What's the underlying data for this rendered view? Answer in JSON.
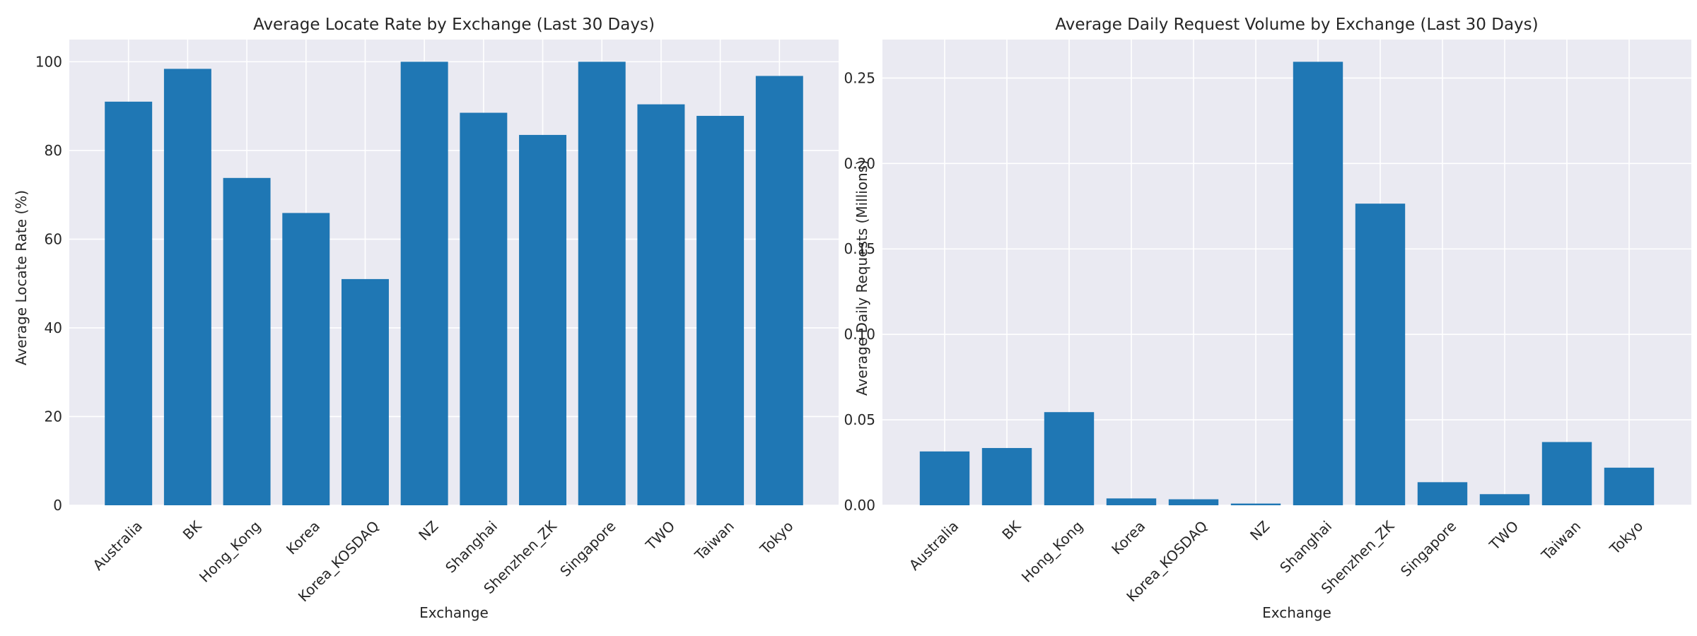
{
  "chart_data": [
    {
      "type": "bar",
      "title": "Average Locate Rate by Exchange (Last 30 Days)",
      "xlabel": "Exchange",
      "ylabel": "Average Locate Rate (%)",
      "categories": [
        "Australia",
        "BK",
        "Hong_Kong",
        "Korea",
        "Korea_KOSDAQ",
        "NZ",
        "Shanghai",
        "Shenzhen_ZK",
        "Singapore",
        "TWO",
        "Taiwan",
        "Tokyo"
      ],
      "values": [
        91.0,
        98.4,
        73.8,
        65.9,
        51.0,
        100.0,
        88.5,
        83.5,
        100.0,
        90.4,
        87.8,
        96.8
      ],
      "ylim": [
        0,
        105
      ],
      "yticks": [
        0,
        20,
        40,
        60,
        80,
        100
      ],
      "ytick_labels": [
        "0",
        "20",
        "40",
        "60",
        "80",
        "100"
      ],
      "grid": true,
      "bar_color": "#1f77b4",
      "background": "#eaeaf2"
    },
    {
      "type": "bar",
      "title": "Average Daily Request Volume by Exchange (Last 30 Days)",
      "xlabel": "Exchange",
      "ylabel": "Average Daily Requests (Millions)",
      "categories": [
        "Australia",
        "BK",
        "Hong_Kong",
        "Korea",
        "Korea_KOSDAQ",
        "NZ",
        "Shanghai",
        "Shenzhen_ZK",
        "Singapore",
        "TWO",
        "Taiwan",
        "Tokyo"
      ],
      "values": [
        0.0315,
        0.0335,
        0.0545,
        0.004,
        0.0035,
        0.001,
        0.2595,
        0.1765,
        0.0135,
        0.0065,
        0.037,
        0.022
      ],
      "ylim": [
        0,
        0.2725
      ],
      "yticks": [
        0,
        0.05,
        0.1,
        0.15,
        0.2,
        0.25
      ],
      "ytick_labels": [
        "0.00",
        "0.05",
        "0.10",
        "0.15",
        "0.20",
        "0.25"
      ],
      "grid": true,
      "bar_color": "#1f77b4",
      "background": "#eaeaf2"
    }
  ]
}
